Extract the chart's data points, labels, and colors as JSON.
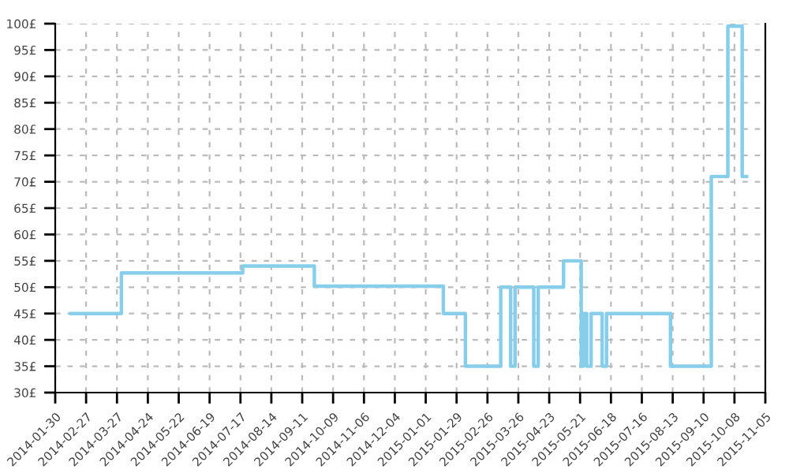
{
  "chart_data": {
    "type": "step",
    "x": [
      "2014-02-13",
      "2014-03-31",
      "2014-07-19",
      "2014-09-22",
      "2015-01-17",
      "2015-02-06",
      "2015-03-10",
      "2015-03-19",
      "2015-03-23",
      "2015-04-09",
      "2015-04-13",
      "2015-05-06",
      "2015-05-22",
      "2015-05-24",
      "2015-05-27",
      "2015-05-31",
      "2015-06-10",
      "2015-06-14",
      "2015-08-11",
      "2015-09-17",
      "2015-10-02",
      "2015-10-15",
      "2015-10-19"
    ],
    "series": [
      {
        "color": "#87ceeb",
        "values": [
          45,
          52.7,
          54,
          50.2,
          45,
          35,
          50,
          35,
          50,
          35,
          50,
          55,
          35,
          45,
          35,
          45,
          35,
          45,
          35,
          71,
          99.5,
          71,
          71
        ]
      }
    ],
    "xlim": [
      "2014-01-30",
      "2015-11-05"
    ],
    "xticks": [
      "2014-01-30",
      "2014-02-27",
      "2014-03-27",
      "2014-04-24",
      "2014-05-22",
      "2014-06-19",
      "2014-07-17",
      "2014-08-14",
      "2014-09-11",
      "2014-10-09",
      "2014-11-06",
      "2014-12-04",
      "2015-01-01",
      "2015-01-29",
      "2015-02-26",
      "2015-03-26",
      "2015-04-23",
      "2015-05-21",
      "2015-06-18",
      "2015-07-16",
      "2015-08-13",
      "2015-09-10",
      "2015-10-08",
      "2015-11-05"
    ],
    "ylim": [
      30,
      100
    ],
    "yticks": [
      {
        "value": 30,
        "label": "30£"
      },
      {
        "value": 35,
        "label": "35£"
      },
      {
        "value": 40,
        "label": "40£"
      },
      {
        "value": 45,
        "label": "45£"
      },
      {
        "value": 50,
        "label": "50£"
      },
      {
        "value": 55,
        "label": "55£"
      },
      {
        "value": 60,
        "label": "60£"
      },
      {
        "value": 65,
        "label": "65£"
      },
      {
        "value": 70,
        "label": "70£"
      },
      {
        "value": 75,
        "label": "75£"
      },
      {
        "value": 80,
        "label": "80£"
      },
      {
        "value": 85,
        "label": "85£"
      },
      {
        "value": 90,
        "label": "90£"
      },
      {
        "value": 95,
        "label": "95£"
      },
      {
        "value": 100,
        "label": "100£"
      }
    ],
    "grid": true,
    "line_style": "solid",
    "marker": "none"
  }
}
